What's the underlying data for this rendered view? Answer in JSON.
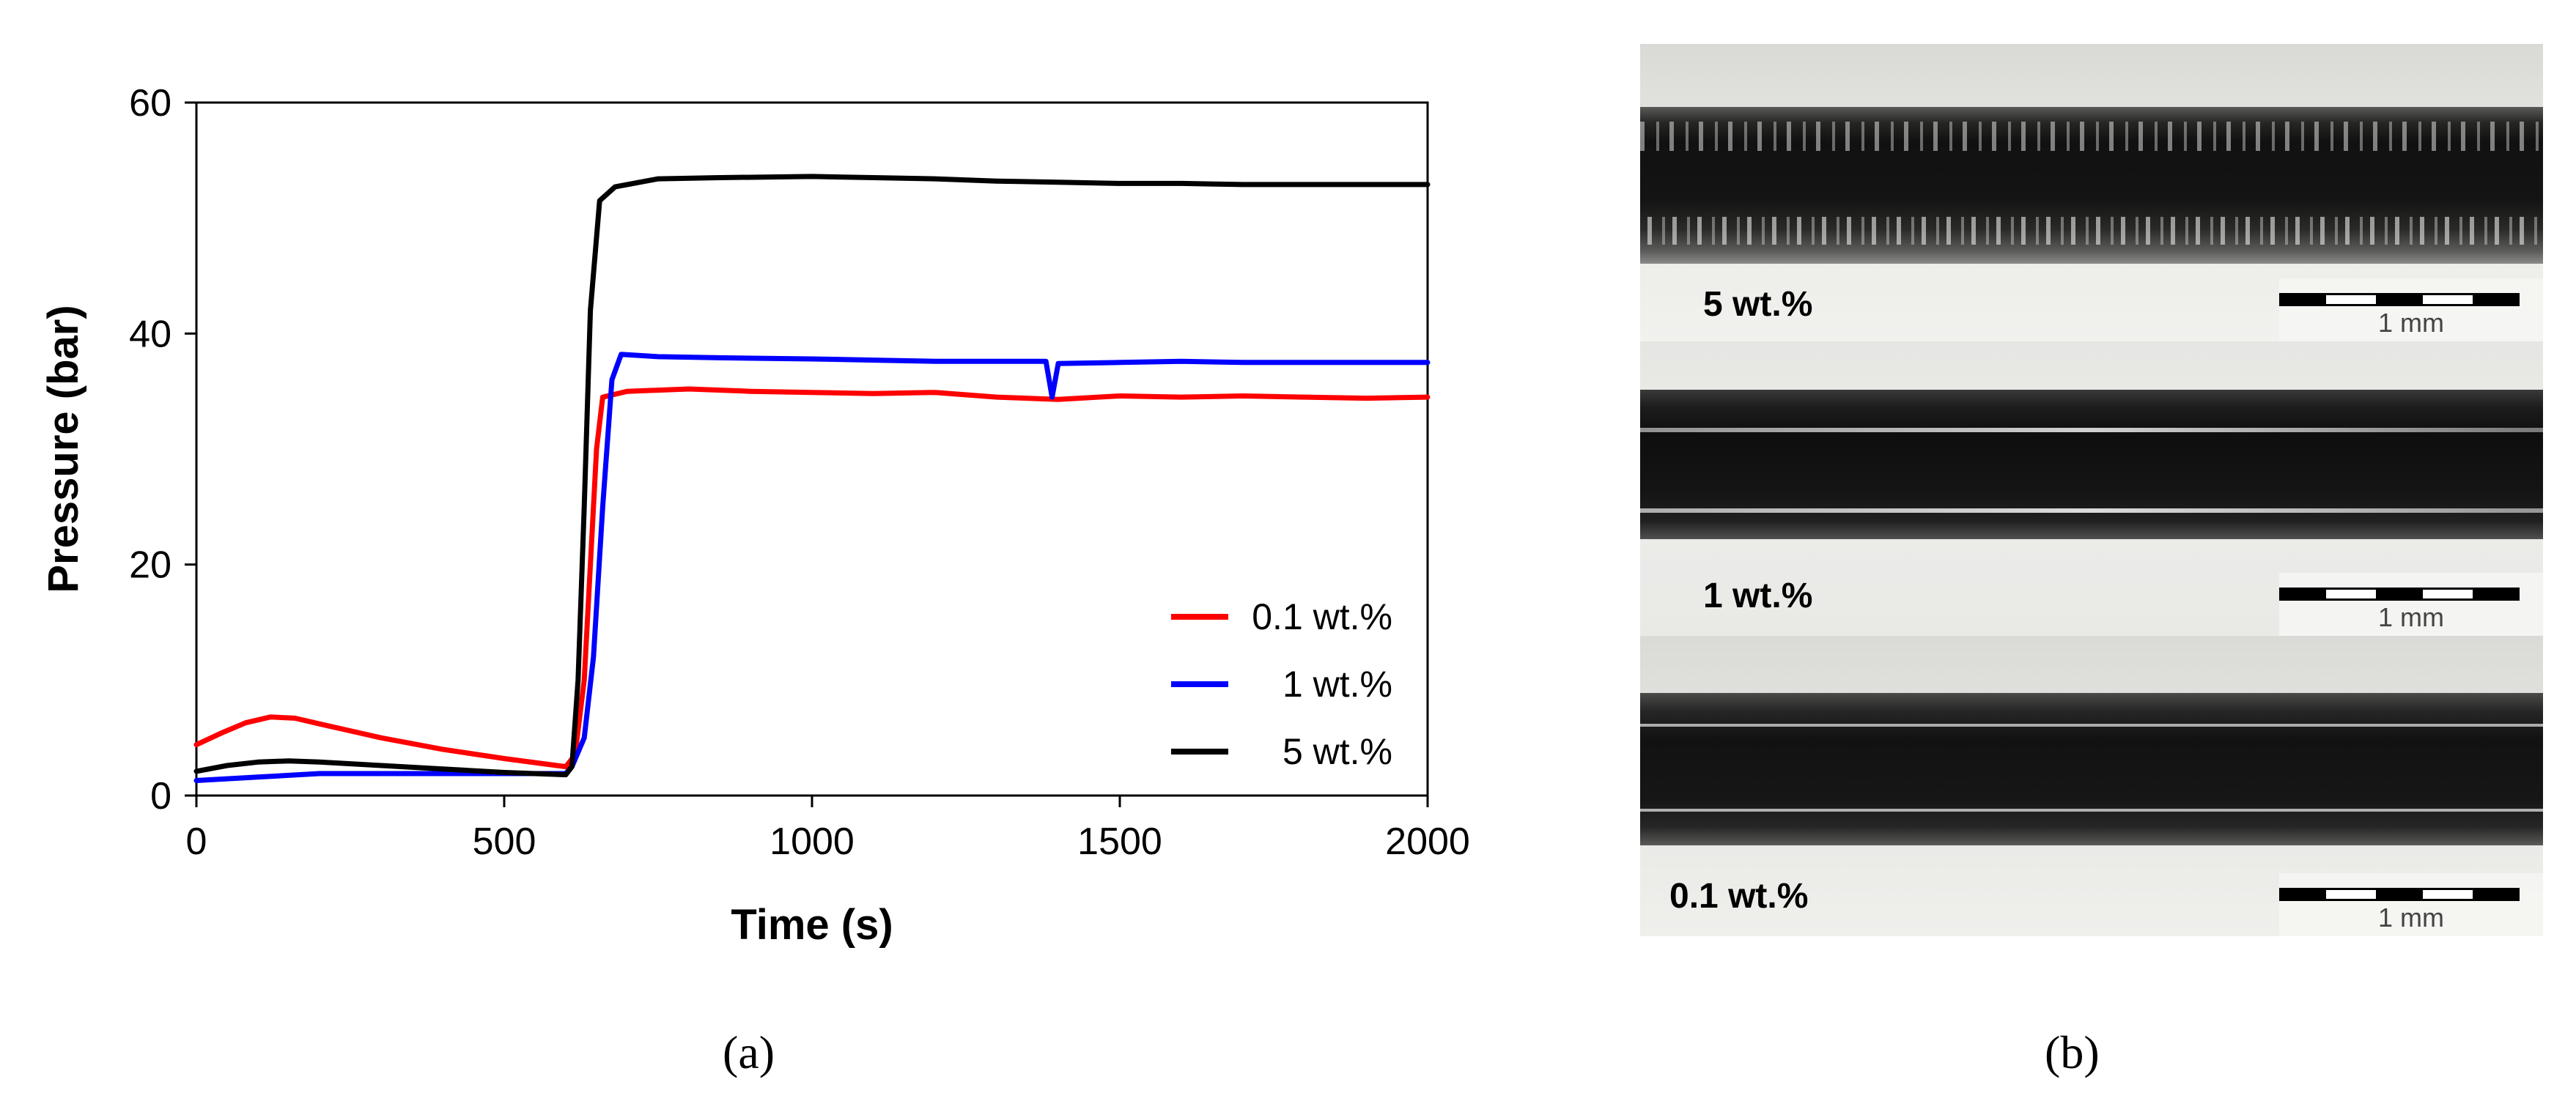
{
  "chart_data": {
    "type": "line",
    "xlabel": "Time (s)",
    "ylabel": "Pressure (bar)",
    "xlim": [
      0,
      2000
    ],
    "ylim": [
      0,
      60
    ],
    "xticks": [
      "0",
      "500",
      "1000",
      "1500",
      "2000"
    ],
    "yticks": [
      "0",
      "20",
      "40",
      "60"
    ],
    "grid": false,
    "legend_position": "lower-right",
    "series": [
      {
        "name": "0.1 wt.%",
        "color": "#ff0000",
        "points": [
          [
            0,
            4.4
          ],
          [
            40,
            5.4
          ],
          [
            80,
            6.3
          ],
          [
            120,
            6.8
          ],
          [
            160,
            6.7
          ],
          [
            200,
            6.2
          ],
          [
            300,
            5.0
          ],
          [
            400,
            4.0
          ],
          [
            500,
            3.2
          ],
          [
            600,
            2.5
          ],
          [
            615,
            3.5
          ],
          [
            630,
            10
          ],
          [
            640,
            20
          ],
          [
            650,
            30
          ],
          [
            660,
            34.5
          ],
          [
            700,
            35.0
          ],
          [
            800,
            35.2
          ],
          [
            900,
            35.0
          ],
          [
            1000,
            34.9
          ],
          [
            1100,
            34.8
          ],
          [
            1200,
            34.9
          ],
          [
            1300,
            34.5
          ],
          [
            1400,
            34.3
          ],
          [
            1500,
            34.6
          ],
          [
            1600,
            34.5
          ],
          [
            1700,
            34.6
          ],
          [
            1800,
            34.5
          ],
          [
            1900,
            34.4
          ],
          [
            2000,
            34.5
          ]
        ]
      },
      {
        "name": "1 wt.%",
        "color": "#0000ff",
        "points": [
          [
            0,
            1.3
          ],
          [
            100,
            1.6
          ],
          [
            200,
            1.9
          ],
          [
            300,
            1.9
          ],
          [
            400,
            1.9
          ],
          [
            500,
            1.9
          ],
          [
            600,
            1.9
          ],
          [
            610,
            2.5
          ],
          [
            630,
            5
          ],
          [
            645,
            12
          ],
          [
            660,
            25
          ],
          [
            675,
            36
          ],
          [
            690,
            38.2
          ],
          [
            750,
            38.0
          ],
          [
            850,
            37.9
          ],
          [
            1000,
            37.8
          ],
          [
            1100,
            37.7
          ],
          [
            1200,
            37.6
          ],
          [
            1300,
            37.6
          ],
          [
            1380,
            37.6
          ],
          [
            1390,
            34.5
          ],
          [
            1400,
            37.4
          ],
          [
            1500,
            37.5
          ],
          [
            1600,
            37.6
          ],
          [
            1700,
            37.5
          ],
          [
            1800,
            37.5
          ],
          [
            1900,
            37.5
          ],
          [
            2000,
            37.5
          ]
        ]
      },
      {
        "name": "5 wt.%",
        "color": "#000000",
        "points": [
          [
            0,
            2.1
          ],
          [
            50,
            2.6
          ],
          [
            100,
            2.9
          ],
          [
            150,
            3.0
          ],
          [
            200,
            2.9
          ],
          [
            300,
            2.6
          ],
          [
            400,
            2.3
          ],
          [
            500,
            2.0
          ],
          [
            600,
            1.8
          ],
          [
            610,
            2.5
          ],
          [
            620,
            10
          ],
          [
            630,
            25
          ],
          [
            640,
            42
          ],
          [
            655,
            51.5
          ],
          [
            680,
            52.7
          ],
          [
            750,
            53.4
          ],
          [
            850,
            53.5
          ],
          [
            1000,
            53.6
          ],
          [
            1100,
            53.5
          ],
          [
            1200,
            53.4
          ],
          [
            1300,
            53.2
          ],
          [
            1400,
            53.1
          ],
          [
            1500,
            53.0
          ],
          [
            1600,
            53.0
          ],
          [
            1700,
            52.9
          ],
          [
            1800,
            52.9
          ],
          [
            1900,
            52.9
          ],
          [
            2000,
            52.9
          ]
        ]
      }
    ]
  },
  "captions": {
    "left": "(a)",
    "right": "(b)"
  },
  "micrographs": [
    {
      "label": "5 wt.%",
      "scale_label": "1 mm",
      "surface": "rough"
    },
    {
      "label": "1 wt.%",
      "scale_label": "1 mm",
      "surface": "medium"
    },
    {
      "label": "0.1 wt.%",
      "scale_label": "1 mm",
      "surface": "smooth"
    }
  ]
}
